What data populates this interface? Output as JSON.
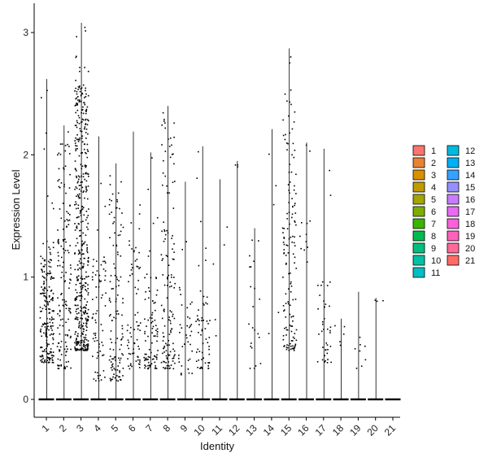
{
  "chart_data": {
    "type": "scatter",
    "subtype": "violin-jitter",
    "title": "",
    "xlabel": "Identity",
    "ylabel": "Expression Level",
    "ylim": [
      -0.15,
      3.25
    ],
    "yticks": [
      0,
      1,
      2,
      3
    ],
    "grid": false,
    "legend_position": "right",
    "categories": [
      "1",
      "2",
      "3",
      "4",
      "5",
      "6",
      "7",
      "8",
      "9",
      "10",
      "11",
      "12",
      "13",
      "14",
      "15",
      "16",
      "17",
      "18",
      "19",
      "20",
      "21"
    ],
    "colors": [
      "#F8766D",
      "#EA8331",
      "#D89000",
      "#C09B00",
      "#A3A500",
      "#7CAE00",
      "#39B600",
      "#00BB4E",
      "#00BF7D",
      "#00C1A3",
      "#00BFC4",
      "#00BAE0",
      "#00B0F6",
      "#35A2FF",
      "#9590FF",
      "#C77CFF",
      "#E76BF3",
      "#FA62DB",
      "#FF62BC",
      "#FF6A98",
      "#FF6C67"
    ],
    "max_values": [
      2.62,
      2.24,
      3.08,
      2.15,
      1.93,
      2.19,
      2.02,
      2.4,
      1.78,
      2.07,
      1.8,
      1.95,
      1.4,
      2.21,
      2.87,
      2.1,
      2.05,
      0.66,
      0.88,
      0.83,
      0.0
    ],
    "nonzero_counts": [
      210,
      150,
      480,
      70,
      120,
      70,
      90,
      130,
      40,
      60,
      5,
      3,
      22,
      5,
      140,
      12,
      40,
      5,
      8,
      3,
      0
    ],
    "typical_ranges": [
      [
        0.3,
        1.3
      ],
      [
        0.25,
        2.2
      ],
      [
        0.4,
        2.6
      ],
      [
        0.15,
        1.2
      ],
      [
        0.15,
        1.7
      ],
      [
        0.25,
        1.3
      ],
      [
        0.25,
        1.0
      ],
      [
        0.25,
        2.3
      ],
      [
        0.2,
        1.0
      ],
      [
        0.25,
        0.9
      ],
      [
        0.35,
        1.8
      ],
      [
        1.9,
        1.95
      ],
      [
        0.25,
        1.4
      ],
      [
        0.4,
        2.2
      ],
      [
        0.4,
        2.4
      ],
      [
        1.1,
        2.1
      ],
      [
        0.3,
        1.0
      ],
      [
        0.4,
        0.66
      ],
      [
        0.25,
        0.88
      ],
      [
        0.8,
        0.83
      ],
      [
        0,
        0
      ]
    ],
    "zero_line_value": 0
  }
}
